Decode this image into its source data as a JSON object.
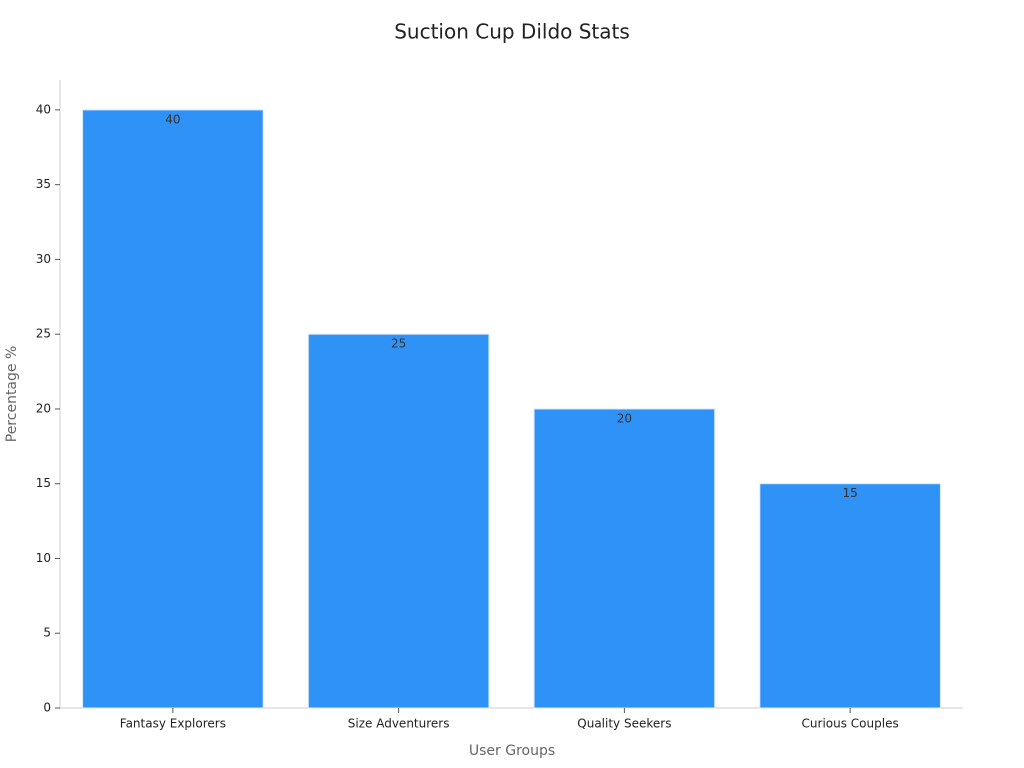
{
  "chart_data": {
    "type": "bar",
    "title": "Suction Cup Dildo Stats",
    "x_label": "User Groups",
    "y_label": "Percentage %",
    "categories": [
      "Fantasy Explorers",
      "Size Adventurers",
      "Quality Seekers",
      "Curious Couples"
    ],
    "values": [
      40,
      25,
      20,
      15
    ],
    "color": "#2f92f7",
    "ylim": [
      0,
      42
    ],
    "yticks": [
      0,
      5,
      10,
      15,
      20,
      25,
      30,
      35,
      40
    ],
    "grid": false
  }
}
